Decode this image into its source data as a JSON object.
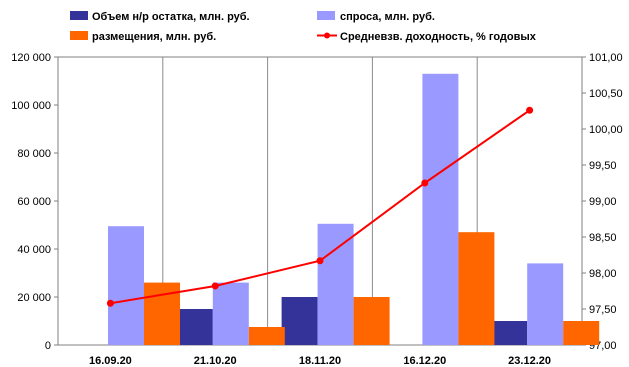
{
  "chart_data": {
    "type": "bar",
    "categories": [
      "16.09.20",
      "21.10.20",
      "18.11.20",
      "16.12.20",
      "23.12.20"
    ],
    "series": [
      {
        "name": "Объем н/р остатка, млн. руб.",
        "type": "bar",
        "axis": "left",
        "color": "#333399",
        "values": [
          0,
          15000,
          20000,
          0,
          10000
        ]
      },
      {
        "name": "спроса, млн. руб.",
        "type": "bar",
        "axis": "left",
        "color": "#9999FF",
        "values": [
          49500,
          26000,
          50500,
          113000,
          34000
        ]
      },
      {
        "name": "размещения, млн. руб.",
        "type": "bar",
        "axis": "left",
        "color": "#FF6600",
        "values": [
          26000,
          7500,
          20000,
          47000,
          10000
        ]
      },
      {
        "name": "Средневзв. доходность, % годовых",
        "type": "line",
        "axis": "right",
        "color": "#FF0000",
        "values": [
          97.58,
          97.82,
          98.17,
          99.25,
          100.26
        ]
      }
    ],
    "y_left": {
      "min": 0,
      "max": 120000,
      "ticks": [
        0,
        20000,
        40000,
        60000,
        80000,
        100000,
        120000
      ],
      "tick_labels": [
        "0",
        "20 000",
        "40 000",
        "60 000",
        "80 000",
        "100 000",
        "120 000"
      ]
    },
    "y_right": {
      "min": 97,
      "max": 101,
      "ticks": [
        97,
        97.5,
        98,
        98.5,
        99,
        99.5,
        100,
        100.5,
        101
      ],
      "tick_labels": [
        "97,00",
        "97,50",
        "98,00",
        "98,50",
        "99,00",
        "99,50",
        "100,00",
        "100,50",
        "101,00"
      ]
    },
    "grid": "vertical",
    "legend_position": "top"
  }
}
